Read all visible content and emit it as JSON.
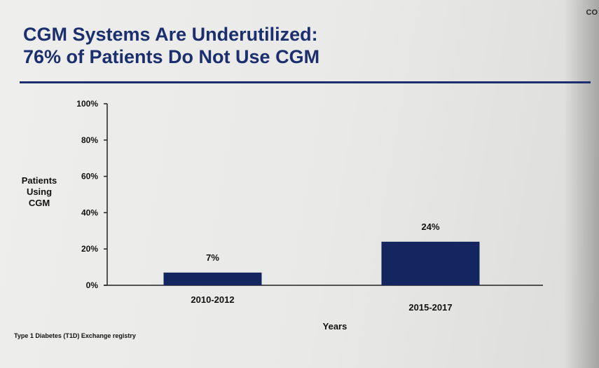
{
  "corner_text": "CO",
  "title_line1": "CGM Systems Are Underutilized:",
  "title_line2": "76% of Patients Do Not Use CGM",
  "source": "Type 1 Diabetes (T1D) Exchange registry",
  "colors": {
    "title": "#1b2f6e",
    "bar": "#14265f"
  },
  "chart_data": {
    "type": "bar",
    "categories": [
      "2010-2012",
      "2015-2017"
    ],
    "values": [
      7,
      24
    ],
    "data_labels": [
      "7%",
      "24%"
    ],
    "xlabel": "Years",
    "ylabel_lines": [
      "Patients",
      "Using",
      "CGM"
    ],
    "yticks": [
      0,
      20,
      40,
      60,
      80,
      100
    ],
    "ytick_labels": [
      "0%",
      "20%",
      "40%",
      "60%",
      "80%",
      "100%"
    ],
    "ylim": [
      0,
      100
    ],
    "grid": false
  }
}
